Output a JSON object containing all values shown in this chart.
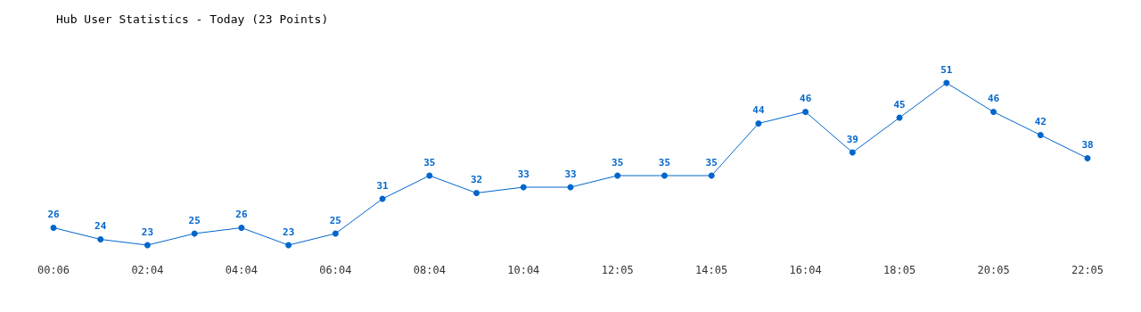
{
  "chart_data": {
    "type": "line",
    "title": "Hub User Statistics - Today (23 Points)",
    "categories": [
      "00:06",
      null,
      "02:04",
      null,
      "04:04",
      null,
      "06:04",
      null,
      "08:04",
      null,
      "10:04",
      null,
      "12:05",
      null,
      "14:05",
      null,
      "16:04",
      null,
      "18:05",
      null,
      "20:05",
      null,
      "22:05"
    ],
    "values": [
      26,
      24,
      23,
      25,
      26,
      23,
      25,
      31,
      35,
      32,
      33,
      33,
      35,
      35,
      35,
      44,
      46,
      39,
      45,
      51,
      46,
      42,
      38
    ],
    "color": "#0066cc",
    "data_labels": true,
    "marker": "circle",
    "line_style": "solid"
  }
}
